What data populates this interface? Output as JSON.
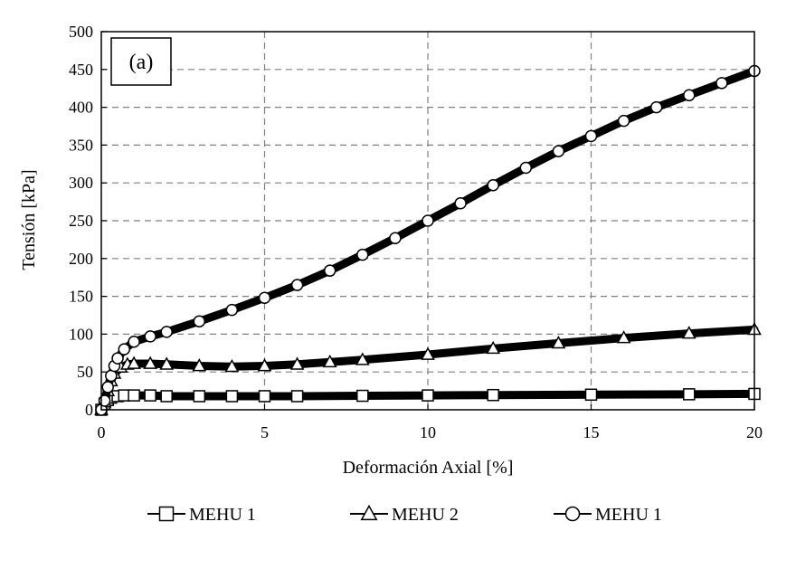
{
  "chart_data": {
    "type": "line",
    "xlabel": "Deformación Axial [%]",
    "ylabel": "Tensión [kPa]",
    "xlim": [
      0,
      20
    ],
    "ylim": [
      0,
      500
    ],
    "xticks": [
      0,
      5,
      10,
      15,
      20
    ],
    "yticks": [
      0,
      50,
      100,
      150,
      200,
      250,
      300,
      350,
      400,
      450,
      500
    ],
    "grid": true,
    "legend_position": "bottom",
    "annotation": "(a)",
    "series": [
      {
        "name": "MEHU 1",
        "marker": "square",
        "x": [
          0,
          0.1,
          0.2,
          0.3,
          0.5,
          0.7,
          1.0,
          1.5,
          2,
          3,
          4,
          5,
          6,
          8,
          10,
          12,
          15,
          18,
          20
        ],
        "y": [
          0,
          8,
          13,
          16,
          18,
          19,
          19,
          19,
          18,
          18,
          18,
          18,
          18,
          18.5,
          19,
          19.5,
          20,
          20.5,
          21
        ]
      },
      {
        "name": "MEHU 2",
        "marker": "triangle",
        "x": [
          0,
          0.1,
          0.2,
          0.3,
          0.4,
          0.6,
          0.8,
          1.0,
          1.5,
          2,
          3,
          4,
          5,
          6,
          7,
          8,
          10,
          12,
          14,
          16,
          18,
          20
        ],
        "y": [
          0,
          10,
          25,
          38,
          48,
          56,
          60,
          61,
          61,
          60,
          58,
          57,
          58,
          60,
          63,
          66,
          73,
          81,
          88,
          95,
          101,
          106
        ]
      },
      {
        "name": "MEHU 1",
        "marker": "circle",
        "x": [
          0,
          0.1,
          0.2,
          0.3,
          0.4,
          0.5,
          0.7,
          1.0,
          1.5,
          2,
          3,
          4,
          5,
          6,
          7,
          8,
          9,
          10,
          11,
          12,
          13,
          14,
          15,
          16,
          17,
          18,
          19,
          20
        ],
        "y": [
          0,
          12,
          30,
          45,
          58,
          68,
          80,
          90,
          97,
          103,
          117,
          132,
          148,
          165,
          184,
          205,
          227,
          250,
          273,
          297,
          320,
          342,
          362,
          382,
          400,
          416,
          432,
          448
        ]
      }
    ]
  }
}
